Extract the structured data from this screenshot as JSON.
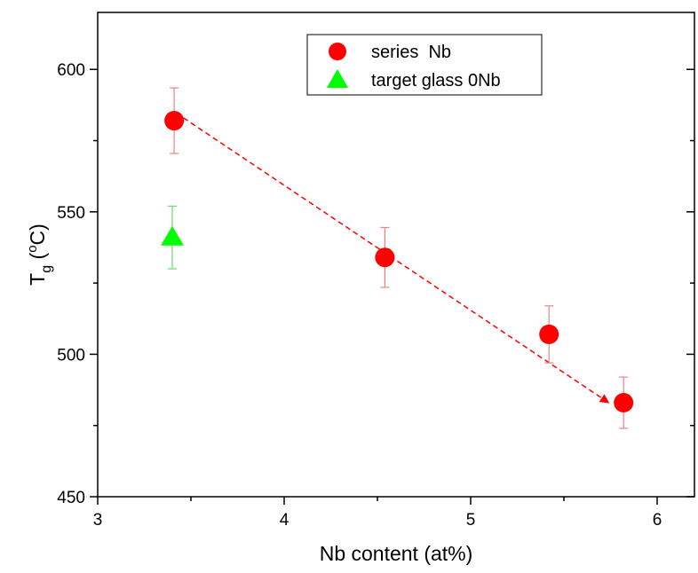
{
  "chart_data": {
    "type": "scatter",
    "xlabel": "Nb content (at%)",
    "ylabel": {
      "main": "T",
      "sub": "g",
      "unit_open": " (",
      "unit_sup": "o",
      "unit_rest": "C)"
    },
    "xlim": [
      3,
      6.2
    ],
    "ylim": [
      450,
      620
    ],
    "xticks": [
      3,
      4,
      5,
      6
    ],
    "yticks": [
      450,
      500,
      550,
      600
    ],
    "y_minor_step": 25,
    "grid": false,
    "legend_position": "top-center",
    "series": [
      {
        "name": "series  Nb",
        "marker": "circle",
        "color": "#ff0000",
        "error_color": "#f08080",
        "points": [
          {
            "x": 3.41,
            "y": 582,
            "err": 11.5
          },
          {
            "x": 4.54,
            "y": 534,
            "err": 10.5
          },
          {
            "x": 5.42,
            "y": 507,
            "err": 10
          },
          {
            "x": 5.82,
            "y": 483,
            "err": 9
          }
        ]
      },
      {
        "name": "target glass 0Nb",
        "marker": "triangle",
        "color": "#00ff00",
        "error_color": "#66e066",
        "points": [
          {
            "x": 3.4,
            "y": 541,
            "err": 11
          }
        ]
      }
    ],
    "trend_arrow": {
      "from": [
        3.46,
        583
      ],
      "to": [
        5.74,
        483
      ],
      "color": "#ff0000",
      "style": "dashed"
    }
  }
}
